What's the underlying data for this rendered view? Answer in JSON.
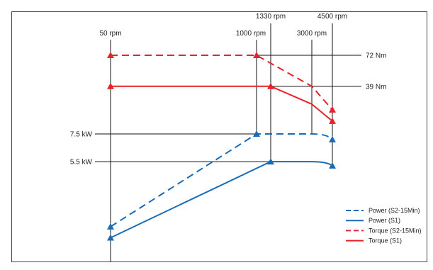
{
  "chart_data": {
    "type": "line",
    "title": "",
    "xlabel": "",
    "ylabel": "",
    "speed_markers": [
      {
        "value": 50,
        "label": "50 rpm"
      },
      {
        "value": 1000,
        "label": "1000 rpm"
      },
      {
        "value": 1330,
        "label": "1330 rpm"
      },
      {
        "value": 3000,
        "label": "3000 rpm"
      },
      {
        "value": 4500,
        "label": "4500 rpm"
      }
    ],
    "torque_markers": [
      {
        "value": 72,
        "label": "72 Nm"
      },
      {
        "value": 39,
        "label": "39 Nm"
      }
    ],
    "power_markers": [
      {
        "value": 7.5,
        "label": "7.5 kW"
      },
      {
        "value": 5.5,
        "label": "5.5 kW"
      }
    ],
    "series": [
      {
        "name": "Power (S2-15Min)",
        "kind": "power",
        "dashed": true,
        "color": "#1a6bb5",
        "points": [
          {
            "x": 50,
            "y": 0.8
          },
          {
            "x": 1000,
            "y": 7.5
          },
          {
            "x": 3000,
            "y": 7.5
          },
          {
            "x": 4500,
            "y": 7.1
          }
        ],
        "markers": [
          0,
          1,
          3
        ]
      },
      {
        "name": "Power (S1)",
        "kind": "power",
        "dashed": false,
        "color": "#1a6bb5",
        "points": [
          {
            "x": 50,
            "y": 0
          },
          {
            "x": 1330,
            "y": 5.5
          },
          {
            "x": 3000,
            "y": 5.5
          },
          {
            "x": 4500,
            "y": 5.2
          }
        ],
        "markers": [
          0,
          1,
          3
        ]
      },
      {
        "name": "Torque (S2-15Min)",
        "kind": "torque",
        "dashed": true,
        "color": "#e8212a",
        "points": [
          {
            "x": 50,
            "y": 72
          },
          {
            "x": 1000,
            "y": 72
          },
          {
            "x": 3000,
            "y": 39
          },
          {
            "x": 4500,
            "y": 14
          }
        ],
        "markers": [
          0,
          1,
          3
        ]
      },
      {
        "name": "Torque (S1)",
        "kind": "torque",
        "dashed": false,
        "color": "#e8212a",
        "points": [
          {
            "x": 50,
            "y": 39
          },
          {
            "x": 1330,
            "y": 39
          },
          {
            "x": 3000,
            "y": 20
          },
          {
            "x": 4500,
            "y": 2
          }
        ],
        "markers": [
          0,
          1,
          3
        ]
      }
    ],
    "legend": {
      "placement": "bottom-right",
      "entries": [
        {
          "label": "Power (S2-15Min)",
          "color": "#1a6bb5",
          "dashed": true
        },
        {
          "label": "Power (S1)",
          "color": "#1a6bb5",
          "dashed": false
        },
        {
          "label": "Torque (S2-15Min)",
          "color": "#e8212a",
          "dashed": true
        },
        {
          "label": "Torque (S1)",
          "color": "#e8212a",
          "dashed": false
        }
      ]
    },
    "grid": false
  }
}
